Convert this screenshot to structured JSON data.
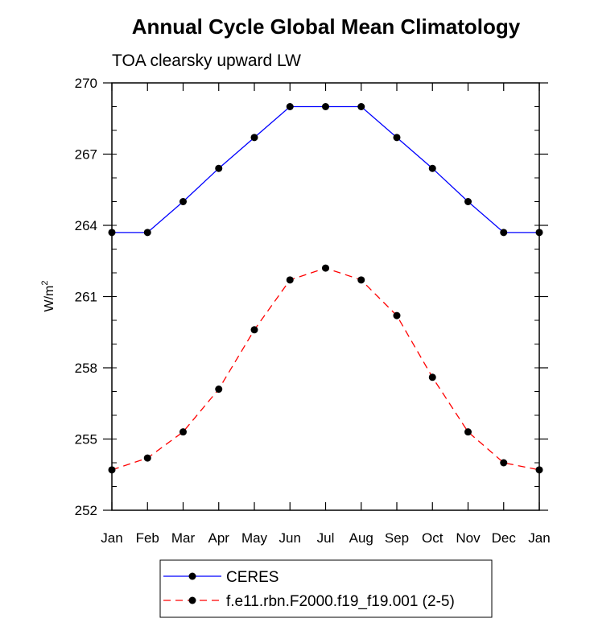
{
  "chart_data": {
    "type": "line",
    "title": "Annual Cycle Global Mean Climatology",
    "subtitle": "TOA clearsky upward LW",
    "ylabel_base": "W/m",
    "ylabel_sup": "2",
    "categories": [
      "Jan",
      "Feb",
      "Mar",
      "Apr",
      "May",
      "Jun",
      "Jul",
      "Aug",
      "Sep",
      "Oct",
      "Nov",
      "Dec",
      "Jan"
    ],
    "ylim": [
      252,
      270
    ],
    "yticks": [
      252,
      255,
      258,
      261,
      264,
      267,
      270
    ],
    "ytick_labels": [
      "252",
      "255",
      "258",
      "261",
      "264",
      "267",
      "270"
    ],
    "yminor_step": 1,
    "series": [
      {
        "name": "CERES",
        "color": "#0000ff",
        "dash": "solid",
        "values": [
          263.7,
          263.7,
          265.0,
          266.4,
          267.7,
          269.0,
          269.0,
          269.0,
          267.7,
          266.4,
          265.0,
          263.7,
          263.7
        ]
      },
      {
        "name": "f.e11.rbn.F2000.f19_f19.001 (2-5)",
        "color": "#ff0000",
        "dash": "dashed",
        "values": [
          253.7,
          254.2,
          255.3,
          257.1,
          259.6,
          261.7,
          262.2,
          261.7,
          260.2,
          257.6,
          255.3,
          254.0,
          253.7
        ]
      }
    ]
  }
}
